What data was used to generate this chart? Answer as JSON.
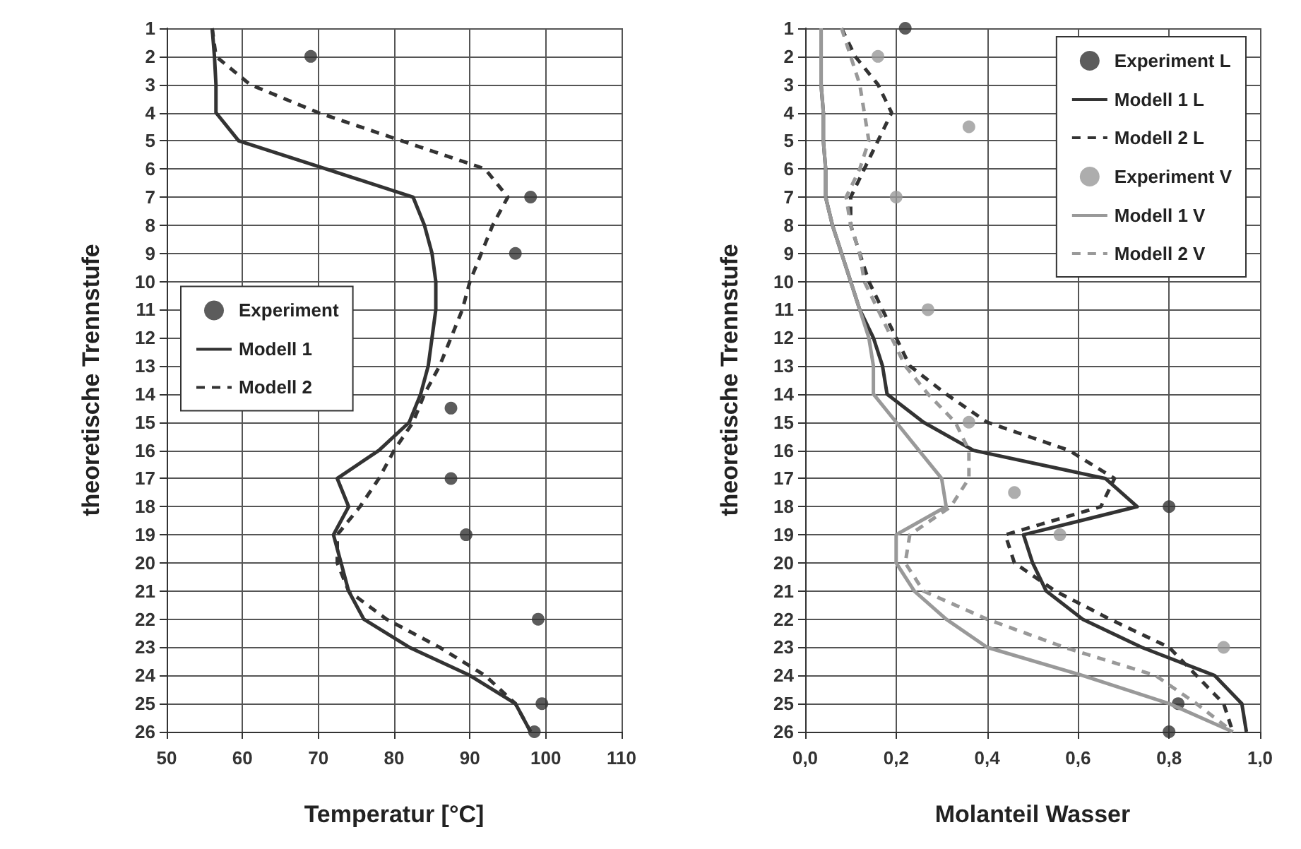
{
  "chart_data": [
    {
      "type": "line",
      "xlabel": "Temperatur [°C]",
      "ylabel": "theoretische Trennstufe",
      "xlim": [
        50,
        110
      ],
      "xticks": [
        50,
        60,
        70,
        80,
        90,
        100,
        110
      ],
      "ylim": [
        26,
        1
      ],
      "yticks": [
        1,
        2,
        3,
        4,
        5,
        6,
        7,
        8,
        9,
        10,
        11,
        12,
        13,
        14,
        15,
        16,
        17,
        18,
        19,
        20,
        21,
        22,
        23,
        24,
        25,
        26
      ],
      "grid": true,
      "legend": "left",
      "series": [
        {
          "name": "Experiment",
          "type": "scatter",
          "marker": "circle",
          "color": "#333333",
          "x": [
            69,
            98,
            96,
            87.5,
            87.5,
            89.5,
            99,
            99.5,
            98.5
          ],
          "values": [
            2,
            7,
            9,
            14.5,
            17,
            19,
            22,
            25,
            26
          ]
        },
        {
          "name": "Modell 1",
          "type": "line",
          "line_style": "solid",
          "marker": "none",
          "color": "#333333",
          "x": [
            56,
            56.3,
            56.5,
            56.5,
            59.5,
            71,
            82.5,
            84,
            85,
            85.5,
            85.5,
            85,
            84.5,
            83.5,
            82,
            78,
            72.5,
            74,
            72,
            73,
            74,
            76,
            82,
            90,
            96,
            98
          ],
          "values": [
            1,
            2,
            3,
            4,
            5,
            6,
            7,
            8,
            9,
            10,
            11,
            12,
            13,
            14,
            15,
            16,
            17,
            18,
            19,
            20,
            21,
            22,
            23,
            24,
            25,
            26
          ]
        },
        {
          "name": "Modell 2",
          "type": "line",
          "line_style": "dashed",
          "marker": "none",
          "color": "#333333",
          "x": [
            56,
            56.5,
            61,
            70,
            81,
            92,
            95,
            93,
            91.5,
            90,
            89,
            87.5,
            86,
            84,
            82.5,
            80,
            78,
            75.5,
            72.5,
            72.5,
            74,
            79,
            86,
            92,
            96,
            98
          ],
          "values": [
            1,
            2,
            3,
            4,
            5,
            6,
            7,
            8,
            9,
            10,
            11,
            12,
            13,
            14,
            15,
            16,
            17,
            18,
            19,
            20,
            21,
            22,
            23,
            24,
            25,
            26
          ]
        }
      ]
    },
    {
      "type": "line",
      "xlabel": "Molanteil Wasser",
      "ylabel": "theoretische Trennstufe",
      "xlim": [
        0,
        1
      ],
      "xticks": [
        {
          "value": 0,
          "label": "0,0"
        },
        {
          "value": 0.2,
          "label": "0,2"
        },
        {
          "value": 0.4,
          "label": "0,4"
        },
        {
          "value": 0.6,
          "label": "0,6"
        },
        {
          "value": 0.8,
          "label": "0,8"
        },
        {
          "value": 1,
          "label": "1,0"
        }
      ],
      "ylim": [
        26,
        1
      ],
      "yticks": [
        1,
        2,
        3,
        4,
        5,
        6,
        7,
        8,
        9,
        10,
        11,
        12,
        13,
        14,
        15,
        16,
        17,
        18,
        19,
        20,
        21,
        22,
        23,
        24,
        25,
        26
      ],
      "grid": true,
      "legend": "top right",
      "series": [
        {
          "name": "Experiment L",
          "type": "scatter",
          "marker": "circle",
          "color": "#333333",
          "x": [
            0.22,
            0.8,
            0.82,
            0.8
          ],
          "values": [
            1,
            18,
            25,
            26
          ]
        },
        {
          "name": "Modell 1 L",
          "type": "line",
          "line_style": "solid",
          "marker": "none",
          "color": "#333333",
          "x": [
            0.035,
            0.035,
            0.035,
            0.04,
            0.04,
            0.045,
            0.045,
            0.06,
            0.08,
            0.1,
            0.12,
            0.15,
            0.17,
            0.18,
            0.26,
            0.37,
            0.66,
            0.73,
            0.48,
            0.5,
            0.53,
            0.61,
            0.74,
            0.9,
            0.96,
            0.97
          ],
          "values": [
            1,
            2,
            3,
            4,
            5,
            6,
            7,
            8,
            9,
            10,
            11,
            12,
            13,
            14,
            15,
            16,
            17,
            18,
            19,
            20,
            21,
            22,
            23,
            24,
            25,
            26
          ]
        },
        {
          "name": "Modell 2 L",
          "type": "line",
          "line_style": "dashed",
          "marker": "none",
          "color": "#333333",
          "x": [
            0.08,
            0.11,
            0.16,
            0.19,
            0.16,
            0.13,
            0.1,
            0.1,
            0.12,
            0.14,
            0.17,
            0.2,
            0.23,
            0.31,
            0.4,
            0.58,
            0.68,
            0.65,
            0.44,
            0.46,
            0.55,
            0.67,
            0.8,
            0.86,
            0.92,
            0.94
          ],
          "values": [
            1,
            2,
            3,
            4,
            5,
            6,
            7,
            8,
            9,
            10,
            11,
            12,
            13,
            14,
            15,
            16,
            17,
            18,
            19,
            20,
            21,
            22,
            23,
            24,
            25,
            26
          ]
        },
        {
          "name": "Experiment V",
          "type": "scatter",
          "marker": "circle",
          "color": "#999999",
          "x": [
            0.16,
            0.36,
            0.2,
            0.27,
            0.36,
            0.46,
            0.56,
            0.92
          ],
          "values": [
            2,
            4.5,
            7,
            11,
            15,
            17.5,
            19,
            23
          ]
        },
        {
          "name": "Modell 1 V",
          "type": "line",
          "line_style": "solid",
          "marker": "none",
          "color": "#999999",
          "x": [
            0.035,
            0.035,
            0.035,
            0.04,
            0.04,
            0.045,
            0.045,
            0.06,
            0.08,
            0.1,
            0.12,
            0.14,
            0.15,
            0.15,
            0.2,
            0.25,
            0.3,
            0.31,
            0.2,
            0.2,
            0.24,
            0.31,
            0.4,
            0.61,
            0.8,
            0.94
          ],
          "values": [
            1,
            2,
            3,
            4,
            5,
            6,
            7,
            8,
            9,
            10,
            11,
            12,
            13,
            14,
            15,
            16,
            17,
            18,
            19,
            20,
            21,
            22,
            23,
            24,
            25,
            26
          ]
        },
        {
          "name": "Modell 2 V",
          "type": "line",
          "line_style": "dashed",
          "marker": "none",
          "color": "#999999",
          "x": [
            0.08,
            0.1,
            0.12,
            0.13,
            0.14,
            0.12,
            0.09,
            0.1,
            0.12,
            0.13,
            0.16,
            0.19,
            0.22,
            0.27,
            0.33,
            0.36,
            0.36,
            0.32,
            0.23,
            0.22,
            0.26,
            0.4,
            0.57,
            0.77,
            0.86,
            0.94
          ],
          "values": [
            1,
            2,
            3,
            4,
            5,
            6,
            7,
            8,
            9,
            10,
            11,
            12,
            13,
            14,
            15,
            16,
            17,
            18,
            19,
            20,
            21,
            22,
            23,
            24,
            25,
            26
          ]
        }
      ]
    }
  ]
}
